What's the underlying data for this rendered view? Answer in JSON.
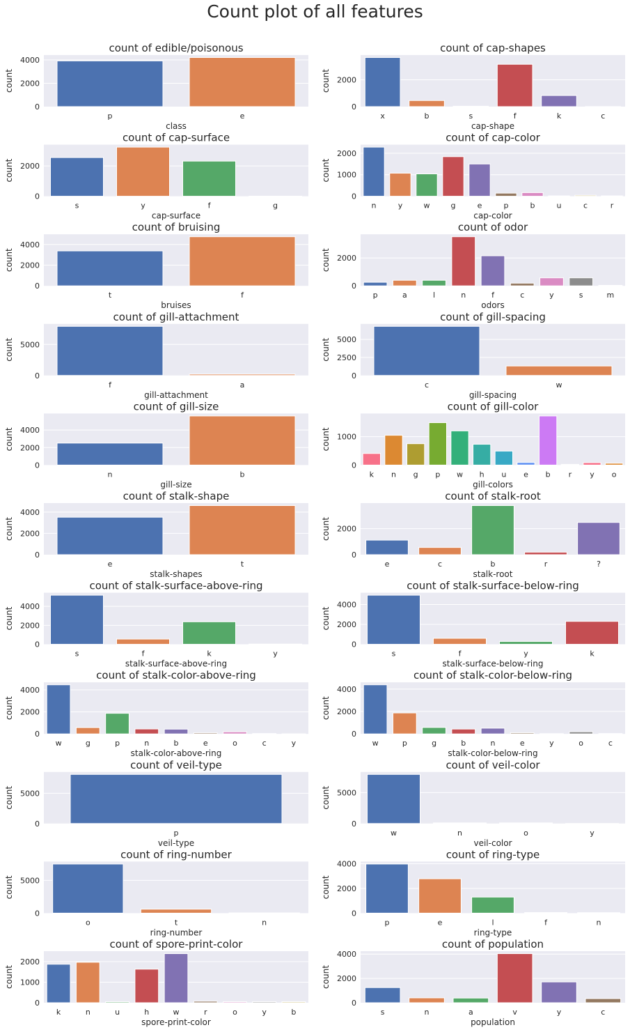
{
  "suptitle": "Count plot of all features",
  "palette": [
    "#4c72b0",
    "#dd8452",
    "#55a868",
    "#c44e52",
    "#8172b3",
    "#937860",
    "#da8bc3",
    "#8c8c8c",
    "#ccb974",
    "#64b5cd"
  ],
  "husl_palette": [
    "#f77189",
    "#dc8932",
    "#ae9d31",
    "#77ab31",
    "#33b07a",
    "#36ada4",
    "#38a9c5",
    "#6e9bf4",
    "#cc7af4",
    "#f565cc"
  ],
  "panel_background": "#eaeaf2",
  "chart_data": [
    {
      "type": "bar",
      "title": "count of edible/poisonous",
      "xlabel": "class",
      "ylabel": "count",
      "categories": [
        "p",
        "e"
      ],
      "values": [
        3916,
        4208
      ],
      "ylim": [
        0,
        4418
      ],
      "yticks": [
        0,
        2000,
        4000
      ],
      "grid": true
    },
    {
      "type": "bar",
      "title": "count of cap-shapes",
      "xlabel": "cap-shape",
      "ylabel": "count",
      "categories": [
        "x",
        "b",
        "s",
        "f",
        "k",
        "c"
      ],
      "values": [
        3656,
        452,
        32,
        3152,
        828,
        4
      ],
      "ylim": [
        0,
        3839
      ],
      "yticks": [
        0,
        2000
      ],
      "grid": true
    },
    {
      "type": "bar",
      "title": "count of cap-surface",
      "xlabel": "cap-surface",
      "ylabel": "count",
      "categories": [
        "s",
        "y",
        "f",
        "g"
      ],
      "values": [
        2556,
        3244,
        2320,
        4
      ],
      "ylim": [
        0,
        3406
      ],
      "yticks": [
        0,
        2000
      ],
      "grid": true
    },
    {
      "type": "bar",
      "title": "count of cap-color",
      "xlabel": "cap-color",
      "ylabel": "count",
      "categories": [
        "n",
        "y",
        "w",
        "g",
        "e",
        "p",
        "b",
        "u",
        "c",
        "r"
      ],
      "values": [
        2284,
        1072,
        1040,
        1840,
        1500,
        144,
        168,
        16,
        44,
        16
      ],
      "ylim": [
        0,
        2398
      ],
      "yticks": [
        0,
        1000,
        2000
      ],
      "grid": true
    },
    {
      "type": "bar",
      "title": "count of bruising",
      "xlabel": "bruises",
      "ylabel": "count",
      "categories": [
        "t",
        "f"
      ],
      "values": [
        3376,
        4748
      ],
      "ylim": [
        0,
        4985
      ],
      "yticks": [
        0,
        2000,
        4000
      ],
      "grid": true
    },
    {
      "type": "bar",
      "title": "count of odor",
      "xlabel": "odors",
      "ylabel": "count",
      "categories": [
        "p",
        "a",
        "l",
        "n",
        "f",
        "c",
        "y",
        "s",
        "m"
      ],
      "values": [
        256,
        400,
        400,
        3528,
        2160,
        192,
        576,
        576,
        36
      ],
      "ylim": [
        0,
        3704
      ],
      "yticks": [
        0,
        2000
      ],
      "grid": true
    },
    {
      "type": "bar",
      "title": "count of gill-attachment",
      "xlabel": "gill-attachment",
      "ylabel": "count",
      "categories": [
        "f",
        "a"
      ],
      "values": [
        7914,
        210
      ],
      "ylim": [
        0,
        8310
      ],
      "yticks": [
        0,
        5000
      ],
      "grid": true
    },
    {
      "type": "bar",
      "title": "count of gill-spacing",
      "xlabel": "gill-spacing",
      "ylabel": "count",
      "categories": [
        "c",
        "w"
      ],
      "values": [
        6812,
        1312
      ],
      "ylim": [
        0,
        7153
      ],
      "yticks": [
        0,
        2500,
        5000
      ],
      "grid": true
    },
    {
      "type": "bar",
      "title": "count of gill-size",
      "xlabel": "gill-size",
      "ylabel": "count",
      "categories": [
        "n",
        "b"
      ],
      "values": [
        2512,
        5612
      ],
      "ylim": [
        0,
        5893
      ],
      "yticks": [
        0,
        2000,
        4000
      ],
      "grid": true
    },
    {
      "type": "bar",
      "title": "count of gill-color",
      "xlabel": "gill-colors",
      "ylabel": "count",
      "palette": "husl",
      "categories": [
        "k",
        "n",
        "g",
        "p",
        "w",
        "h",
        "u",
        "e",
        "b",
        "r",
        "y",
        "o"
      ],
      "values": [
        408,
        1048,
        752,
        1492,
        1202,
        732,
        492,
        96,
        1728,
        24,
        86,
        64
      ],
      "ylim": [
        0,
        1814
      ],
      "yticks": [
        0,
        1000
      ],
      "grid": true
    },
    {
      "type": "bar",
      "title": "count of stalk-shape",
      "xlabel": "stalk-shapes",
      "ylabel": "count",
      "categories": [
        "e",
        "t"
      ],
      "values": [
        3516,
        4608
      ],
      "ylim": [
        0,
        4838
      ],
      "yticks": [
        0,
        2000,
        4000
      ],
      "grid": true
    },
    {
      "type": "bar",
      "title": "count of stalk-root",
      "xlabel": "stalk-root",
      "ylabel": "count",
      "categories": [
        "e",
        "c",
        "b",
        "r",
        "?"
      ],
      "values": [
        1120,
        556,
        3776,
        192,
        2480
      ],
      "ylim": [
        0,
        3965
      ],
      "yticks": [
        0,
        2000
      ],
      "grid": true
    },
    {
      "type": "bar",
      "title": "count of stalk-surface-above-ring",
      "xlabel": "stalk-surface-above-ring",
      "ylabel": "count",
      "categories": [
        "s",
        "f",
        "k",
        "y"
      ],
      "values": [
        5176,
        552,
        2372,
        24
      ],
      "ylim": [
        0,
        5435
      ],
      "yticks": [
        0,
        2000,
        4000
      ],
      "grid": true
    },
    {
      "type": "bar",
      "title": "count of stalk-surface-below-ring",
      "xlabel": "stalk-surface-below-ring",
      "ylabel": "count",
      "categories": [
        "s",
        "f",
        "y",
        "k"
      ],
      "values": [
        4936,
        600,
        284,
        2304
      ],
      "ylim": [
        0,
        5183
      ],
      "yticks": [
        0,
        2000,
        4000
      ],
      "grid": true
    },
    {
      "type": "bar",
      "title": "count of stalk-color-above-ring",
      "xlabel": "stalk-color-above-ring",
      "ylabel": "count",
      "categories": [
        "w",
        "g",
        "p",
        "n",
        "b",
        "e",
        "o",
        "c",
        "y"
      ],
      "values": [
        4464,
        576,
        1872,
        448,
        432,
        96,
        192,
        36,
        8
      ],
      "ylim": [
        0,
        4687
      ],
      "yticks": [
        0,
        2000,
        4000
      ],
      "grid": true
    },
    {
      "type": "bar",
      "title": "count of stalk-color-below-ring",
      "xlabel": "stalk-color-below-ring",
      "ylabel": "count",
      "categories": [
        "w",
        "p",
        "g",
        "b",
        "n",
        "e",
        "y",
        "o",
        "c"
      ],
      "values": [
        4384,
        1872,
        576,
        432,
        512,
        96,
        24,
        192,
        36
      ],
      "ylim": [
        0,
        4603
      ],
      "yticks": [
        0,
        2000,
        4000
      ],
      "grid": true
    },
    {
      "type": "bar",
      "title": "count of veil-type",
      "xlabel": "veil-type",
      "ylabel": "count",
      "categories": [
        "p"
      ],
      "values": [
        8124
      ],
      "ylim": [
        0,
        8530
      ],
      "yticks": [
        0,
        5000
      ],
      "grid": true
    },
    {
      "type": "bar",
      "title": "count of veil-color",
      "xlabel": "veil-color",
      "ylabel": "count",
      "categories": [
        "w",
        "n",
        "o",
        "y"
      ],
      "values": [
        7924,
        96,
        96,
        8
      ],
      "ylim": [
        0,
        8320
      ],
      "yticks": [
        0,
        5000
      ],
      "grid": true
    },
    {
      "type": "bar",
      "title": "count of ring-number",
      "xlabel": "ring-number",
      "ylabel": "count",
      "categories": [
        "o",
        "t",
        "n"
      ],
      "values": [
        7488,
        600,
        36
      ],
      "ylim": [
        0,
        7862
      ],
      "yticks": [
        0,
        5000
      ],
      "grid": true
    },
    {
      "type": "bar",
      "title": "count of ring-type",
      "xlabel": "ring-type",
      "ylabel": "count",
      "categories": [
        "p",
        "e",
        "l",
        "f",
        "n"
      ],
      "values": [
        3968,
        2776,
        1296,
        48,
        36
      ],
      "ylim": [
        0,
        4166
      ],
      "yticks": [
        0,
        2000,
        4000
      ],
      "grid": true
    },
    {
      "type": "bar",
      "title": "count of spore-print-color",
      "xlabel": "spore-print-color",
      "ylabel": "count",
      "categories": [
        "k",
        "n",
        "u",
        "h",
        "w",
        "r",
        "o",
        "y",
        "b"
      ],
      "values": [
        1872,
        1968,
        48,
        1632,
        2388,
        72,
        48,
        48,
        48
      ],
      "ylim": [
        0,
        2507
      ],
      "yticks": [
        0,
        1000,
        2000
      ],
      "grid": true
    },
    {
      "type": "bar",
      "title": "count of population",
      "xlabel": "population",
      "ylabel": "count",
      "categories": [
        "s",
        "n",
        "a",
        "v",
        "y",
        "c"
      ],
      "values": [
        1248,
        400,
        384,
        4040,
        1712,
        340
      ],
      "ylim": [
        0,
        4242
      ],
      "yticks": [
        0,
        2000,
        4000
      ],
      "grid": true
    }
  ]
}
